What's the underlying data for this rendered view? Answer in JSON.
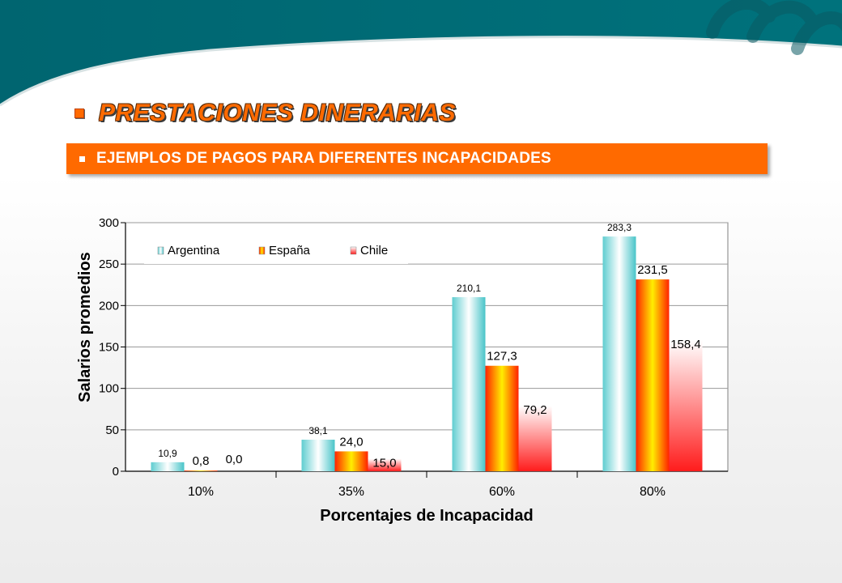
{
  "slide": {
    "title": "PRESTACIONES DINERARIAS",
    "subtitle": "EJEMPLOS DE PAGOS PARA DIFERENTES INCAPACIDADES",
    "colors": {
      "header_teal": "#006a74",
      "accent_orange": "#ff6a00",
      "subtitle_text": "#ffffff"
    }
  },
  "chart_data": {
    "type": "bar",
    "categories": [
      "10%",
      "35%",
      "60%",
      "80%"
    ],
    "series": [
      {
        "name": "Argentina",
        "values": [
          10.9,
          38.1,
          210.1,
          283.3
        ],
        "labels": [
          "10,9",
          "38,1",
          "210,1",
          "283,3"
        ],
        "color": "#3fc0c4"
      },
      {
        "name": "España",
        "values": [
          0.8,
          24.0,
          127.3,
          231.5
        ],
        "labels": [
          "0,8",
          "24,0",
          "127,3",
          "231,5"
        ],
        "color": "#ff2a00"
      },
      {
        "name": "Chile",
        "values": [
          0.0,
          15.0,
          79.2,
          158.4
        ],
        "labels": [
          "0,0",
          "15,0",
          "79,2",
          "158,4"
        ],
        "color": "#ff2020"
      }
    ],
    "xlabel": "Porcentajes de Incapacidad",
    "ylabel": "Salarios promedios",
    "ylim": [
      0,
      300
    ],
    "yticks": [
      0,
      50,
      100,
      150,
      200,
      250,
      300
    ],
    "grid": true,
    "legend": "top-left"
  }
}
